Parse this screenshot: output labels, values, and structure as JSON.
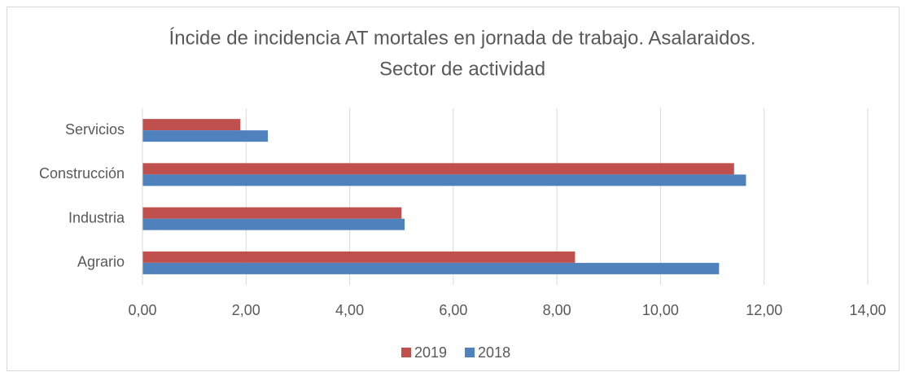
{
  "chart_data": {
    "type": "bar",
    "orientation": "horizontal",
    "title": [
      "Íncide de incidencia AT mortales en jornada de trabajo. Asalaraidos.",
      "Sector de actividad"
    ],
    "categories": [
      "Agrario",
      "Industria",
      "Construcción",
      "Servicios"
    ],
    "series": [
      {
        "name": "2019",
        "color": "#c0504d",
        "values": [
          8.35,
          5.0,
          11.42,
          1.89
        ]
      },
      {
        "name": "2018",
        "color": "#4f81bd",
        "values": [
          11.13,
          5.06,
          11.65,
          2.42
        ]
      }
    ],
    "xlim": [
      0,
      14
    ],
    "xticks": [
      {
        "value": 0,
        "label": "0,00"
      },
      {
        "value": 2,
        "label": "2,00"
      },
      {
        "value": 4,
        "label": "4,00"
      },
      {
        "value": 6,
        "label": "6,00"
      },
      {
        "value": 8,
        "label": "8,00"
      },
      {
        "value": 10,
        "label": "10,00"
      },
      {
        "value": 12,
        "label": "12,00"
      },
      {
        "value": 14,
        "label": "14,00"
      }
    ],
    "grid": true,
    "legend": "bottom"
  }
}
